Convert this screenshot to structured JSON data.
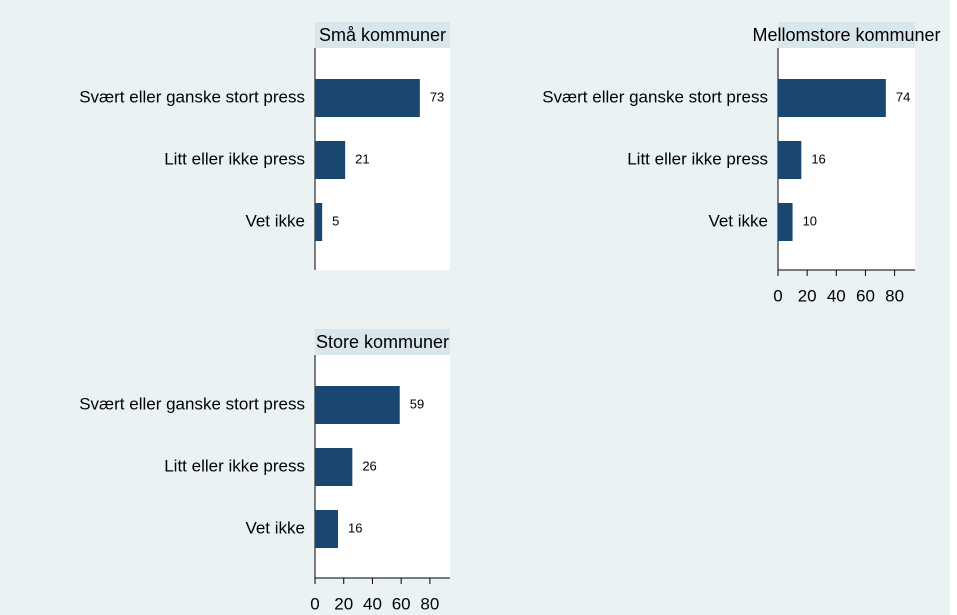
{
  "chart_data": [
    {
      "type": "bar",
      "orientation": "horizontal",
      "title": "Små kommuner",
      "categories": [
        "Svært eller ganske stort press",
        "Litt eller ikke press",
        "Vet ikke"
      ],
      "values": [
        73,
        21,
        5
      ],
      "color": "#1a476f",
      "xlim": [
        0,
        94
      ]
    },
    {
      "type": "bar",
      "orientation": "horizontal",
      "title": "Mellomstore kommuner",
      "categories": [
        "Svært eller ganske stort press",
        "Litt eller ikke press",
        "Vet ikke"
      ],
      "values": [
        74,
        16,
        10
      ],
      "color": "#1a476f",
      "xlim": [
        0,
        94
      ],
      "xticks": [
        0,
        20,
        40,
        60,
        80
      ]
    },
    {
      "type": "bar",
      "orientation": "horizontal",
      "title": "Store kommuner",
      "categories": [
        "Svært eller ganske stort press",
        "Litt eller ikke press",
        "Vet ikke"
      ],
      "values": [
        59,
        26,
        16
      ],
      "color": "#1a476f",
      "xlim": [
        0,
        94
      ],
      "xticks": [
        0,
        20,
        40,
        60,
        80
      ]
    }
  ]
}
